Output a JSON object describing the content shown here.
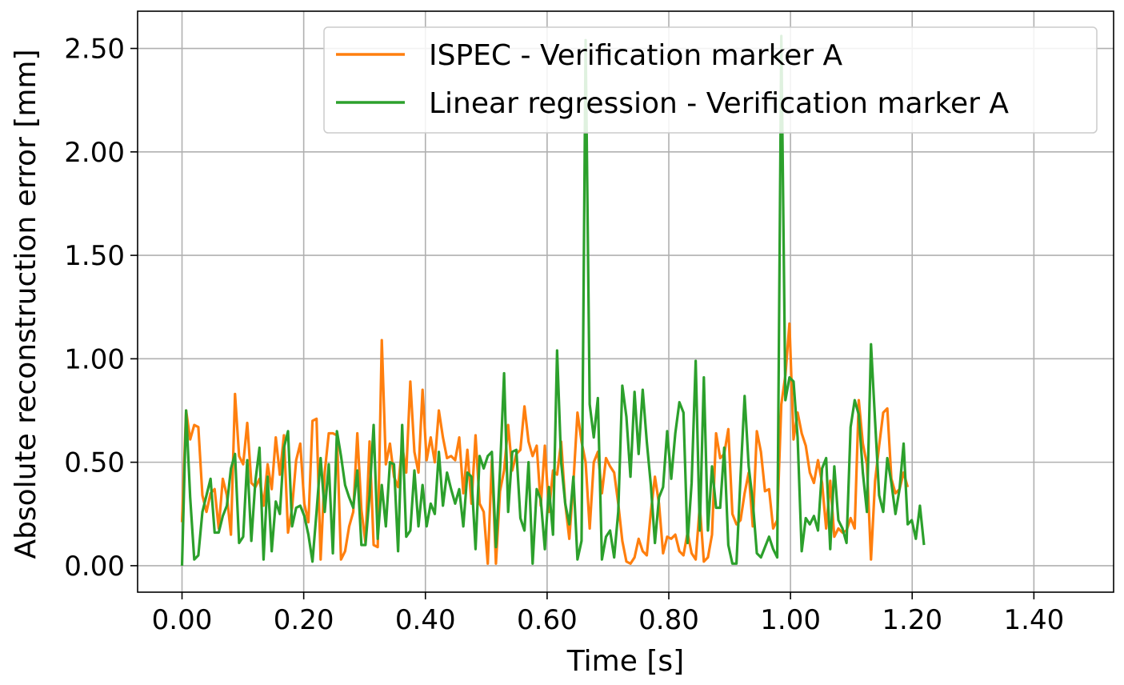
{
  "chart_data": {
    "type": "line",
    "title": "",
    "xlabel": "Time [s]",
    "ylabel": "Absolute reconstruction error [mm]",
    "xlim": [
      -0.073,
      1.531
    ],
    "ylim": [
      -0.128,
      2.68
    ],
    "grid": true,
    "legend_position": "top-right",
    "x_ticks": [
      0.0,
      0.2,
      0.4,
      0.6,
      0.8,
      1.0,
      1.2,
      1.4
    ],
    "x_tick_labels": [
      "0.00",
      "0.20",
      "0.40",
      "0.60",
      "0.80",
      "1.00",
      "1.20",
      "1.40"
    ],
    "y_ticks": [
      0.0,
      0.5,
      1.0,
      1.5,
      2.0,
      2.5
    ],
    "y_tick_labels": [
      "0.00",
      "0.50",
      "1.00",
      "1.50",
      "2.00",
      "2.50"
    ],
    "x_step": 0.0067,
    "series": [
      {
        "name": "ISPEC - Verification marker A",
        "color": "#ff7f0e",
        "values": [
          0.21,
          0.75,
          0.61,
          0.68,
          0.67,
          0.34,
          0.26,
          0.35,
          0.37,
          0.18,
          0.42,
          0.34,
          0.15,
          0.83,
          0.53,
          0.49,
          0.69,
          0.4,
          0.38,
          0.42,
          0.29,
          0.49,
          0.37,
          0.62,
          0.44,
          0.63,
          0.16,
          0.28,
          0.51,
          0.59,
          0.3,
          0.21,
          0.7,
          0.71,
          0.03,
          0.45,
          0.64,
          0.64,
          0.63,
          0.03,
          0.07,
          0.19,
          0.26,
          0.64,
          0.27,
          0.11,
          0.6,
          0.1,
          0.09,
          1.09,
          0.49,
          0.59,
          0.43,
          0.38,
          0.58,
          0.45,
          0.89,
          0.55,
          0.45,
          0.85,
          0.51,
          0.62,
          0.5,
          0.75,
          0.62,
          0.52,
          0.53,
          0.51,
          0.62,
          0.35,
          0.56,
          0.3,
          0.63,
          0.3,
          0.26,
          0.01,
          0.51,
          0.01,
          0.36,
          0.46,
          0.68,
          0.46,
          0.54,
          0.56,
          0.77,
          0.6,
          0.53,
          0.58,
          0.29,
          0.58,
          0.26,
          0.46,
          0.44,
          0.6,
          0.3,
          0.13,
          0.4,
          0.74,
          0.6,
          0.5,
          0.18,
          0.5,
          0.55,
          0.35,
          0.52,
          0.48,
          0.45,
          0.3,
          0.12,
          0.02,
          0.01,
          0.04,
          0.13,
          0.07,
          0.05,
          0.26,
          0.43,
          0.3,
          0.06,
          0.14,
          0.13,
          0.15,
          0.07,
          0.05,
          0.16,
          0.06,
          0.03,
          0.29,
          0.02,
          0.04,
          0.15,
          0.64,
          0.52,
          0.54,
          0.66,
          0.25,
          0.2,
          0.22,
          0.35,
          0.45,
          0.19,
          0.65,
          0.55,
          0.36,
          0.37,
          0.18,
          0.22,
          0.78,
          0.92,
          1.17,
          0.61,
          0.74,
          0.64,
          0.58,
          0.45,
          0.4,
          0.51,
          0.4,
          0.18,
          0.41,
          0.14,
          0.18,
          0.16,
          0.17,
          0.23,
          0.18,
          0.8,
          0.59,
          0.49,
          0.03,
          0.41,
          0.58,
          0.74,
          0.76,
          0.42,
          0.35,
          0.37,
          0.45,
          0.38
        ]
      },
      {
        "name": "Linear regression - Verification marker A",
        "color": "#2ca02c",
        "values": [
          0.0,
          0.75,
          0.33,
          0.03,
          0.05,
          0.26,
          0.34,
          0.42,
          0.16,
          0.16,
          0.24,
          0.29,
          0.47,
          0.54,
          0.11,
          0.14,
          0.51,
          0.12,
          0.41,
          0.57,
          0.03,
          0.43,
          0.07,
          0.31,
          0.25,
          0.57,
          0.65,
          0.19,
          0.28,
          0.29,
          0.24,
          0.15,
          0.02,
          0.26,
          0.52,
          0.26,
          0.49,
          0.06,
          0.65,
          0.53,
          0.39,
          0.33,
          0.28,
          0.46,
          0.1,
          0.1,
          0.34,
          0.68,
          0.13,
          0.39,
          0.19,
          0.5,
          0.49,
          0.07,
          0.68,
          0.14,
          0.17,
          0.46,
          0.19,
          0.39,
          0.19,
          0.3,
          0.25,
          0.55,
          0.29,
          0.45,
          0.37,
          0.3,
          0.37,
          0.19,
          0.45,
          0.43,
          0.08,
          0.53,
          0.47,
          0.53,
          0.55,
          0.09,
          0.46,
          0.93,
          0.26,
          0.55,
          0.56,
          0.23,
          0.17,
          0.5,
          0.01,
          0.37,
          0.32,
          0.08,
          0.38,
          0.15,
          1.04,
          0.5,
          0.3,
          0.2,
          0.43,
          0.03,
          0.12,
          2.54,
          0.78,
          0.62,
          0.81,
          0.03,
          0.14,
          0.17,
          0.04,
          0.26,
          0.87,
          0.72,
          0.43,
          0.84,
          0.54,
          0.85,
          0.6,
          0.39,
          0.11,
          0.33,
          0.38,
          0.65,
          0.42,
          0.64,
          0.79,
          0.74,
          0.11,
          0.4,
          0.99,
          0.17,
          0.91,
          0.17,
          0.48,
          0.28,
          0.28,
          0.57,
          0.1,
          0.01,
          0.01,
          0.43,
          0.82,
          0.48,
          0.31,
          0.06,
          0.04,
          0.09,
          0.14,
          0.08,
          0.04,
          2.56,
          0.8,
          0.91,
          0.89,
          0.62,
          0.07,
          0.23,
          0.2,
          0.24,
          0.17,
          0.47,
          0.52,
          0.08,
          0.48,
          0.22,
          0.18,
          0.11,
          0.67,
          0.8,
          0.73,
          0.45,
          0.26,
          1.07,
          0.7,
          0.34,
          0.26,
          0.52,
          0.4,
          0.25,
          0.37,
          0.59,
          0.2,
          0.22,
          0.13,
          0.29,
          0.1
        ]
      }
    ]
  }
}
